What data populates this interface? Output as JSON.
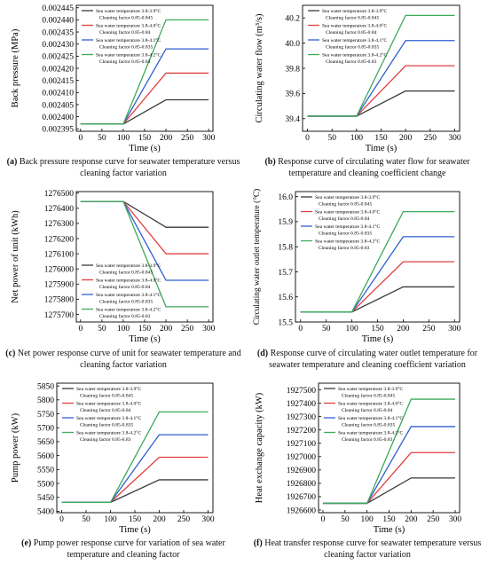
{
  "chart_data": [
    {
      "id": "a",
      "type": "line",
      "ylabel": "Back pressure (MPa)",
      "xlabel": "Time (s)",
      "xlim": [
        -10,
        310
      ],
      "ylim": [
        0.002394,
        0.002446
      ],
      "xticks": [
        0,
        50,
        100,
        150,
        200,
        250,
        300
      ],
      "yticks": [
        0.002395,
        0.0024,
        0.002405,
        0.00241,
        0.002415,
        0.00242,
        0.002425,
        0.00243,
        0.002435,
        0.00244,
        0.002445
      ],
      "yticklabels": [
        "0.002395",
        "0.002400",
        "0.002405",
        "0.002410",
        "0.002415",
        "0.002420",
        "0.002425",
        "0.002430",
        "0.002435",
        "0.002440",
        "0.002445"
      ],
      "legend_position": "top-left",
      "series": [
        {
          "name": "Sea water temperature 3.8-3.9°C",
          "sub": "Cleaning factor 0.85-0.845",
          "color": "#3a3a3a",
          "x": [
            0,
            100,
            200,
            300
          ],
          "y": [
            0.002397,
            0.002397,
            0.002407,
            0.002407
          ]
        },
        {
          "name": "Sea water temperature 3.8-4.0°C",
          "sub": "Cleaning factor 0.85-0.84",
          "color": "#e04040",
          "x": [
            0,
            100,
            200,
            300
          ],
          "y": [
            0.002397,
            0.002397,
            0.002418,
            0.002418
          ]
        },
        {
          "name": "Sea water temperature 3.8-4.1°C",
          "sub": "Cleaning factor 0.85-0.835",
          "color": "#2f5fd0",
          "x": [
            0,
            100,
            200,
            300
          ],
          "y": [
            0.002397,
            0.002397,
            0.002428,
            0.002428
          ]
        },
        {
          "name": "Sea water temperature 3.8-4.2°C",
          "sub": "Cleaning factor 0.85-0.83",
          "color": "#3caa5a",
          "x": [
            0,
            100,
            200,
            300
          ],
          "y": [
            0.002397,
            0.002397,
            0.00244,
            0.00244
          ]
        }
      ]
    },
    {
      "id": "b",
      "type": "line",
      "ylabel": "Circulating water flow (m³/s)",
      "xlabel": "Time (s)",
      "xlim": [
        -10,
        310
      ],
      "ylim": [
        39.3,
        40.3
      ],
      "xticks": [
        0,
        50,
        100,
        150,
        200,
        250,
        300
      ],
      "yticks": [
        39.4,
        39.6,
        39.8,
        40.0,
        40.2
      ],
      "yticklabels": [
        "39.4",
        "39.6",
        "39.8",
        "40.0",
        "40.2"
      ],
      "legend_position": "top-left",
      "series": [
        {
          "name": "Sea water temperature 3.8-3.9°C",
          "sub": "Cleaning factor 0.85-0.845",
          "color": "#3a3a3a",
          "x": [
            0,
            100,
            200,
            300
          ],
          "y": [
            39.42,
            39.42,
            39.62,
            39.62
          ]
        },
        {
          "name": "Sea water temperature 3.8-4.0°C",
          "sub": "Cleaning factor 0.85-0.84",
          "color": "#e04040",
          "x": [
            0,
            100,
            200,
            300
          ],
          "y": [
            39.42,
            39.42,
            39.82,
            39.82
          ]
        },
        {
          "name": "Sea water temperature 3.8-4.1°C",
          "sub": "Cleaning factor 0.85-0.835",
          "color": "#2f5fd0",
          "x": [
            0,
            100,
            200,
            300
          ],
          "y": [
            39.42,
            39.42,
            40.02,
            40.02
          ]
        },
        {
          "name": "Sea water temperature 3.8-4.2°C",
          "sub": "Cleaning factor 0.85-0.83",
          "color": "#3caa5a",
          "x": [
            0,
            100,
            200,
            300
          ],
          "y": [
            39.42,
            39.42,
            40.22,
            40.22
          ]
        }
      ]
    },
    {
      "id": "c",
      "type": "line",
      "ylabel": "Net power of unit (kWh)",
      "xlabel": "Time (s)",
      "xlim": [
        -10,
        310
      ],
      "ylim": [
        1275650,
        1276510
      ],
      "xticks": [
        0,
        50,
        100,
        150,
        200,
        250,
        300
      ],
      "yticks": [
        1275700,
        1275800,
        1275900,
        1276000,
        1276100,
        1276200,
        1276300,
        1276400,
        1276500
      ],
      "yticklabels": [
        "1275700",
        "1275800",
        "1275900",
        "1276000",
        "1276100",
        "1276200",
        "1276300",
        "1276400",
        "1276500"
      ],
      "legend_position": "bottom-left",
      "series": [
        {
          "name": "Sea water temperature 3.8-3.9°C",
          "sub": "Cleaning factor 0.85-0.845",
          "color": "#3a3a3a",
          "x": [
            0,
            100,
            200,
            300
          ],
          "y": [
            1276445,
            1276445,
            1276275,
            1276275
          ]
        },
        {
          "name": "Sea water temperature 3.8-4.0°C",
          "sub": "Cleaning factor 0.85-0.84",
          "color": "#e04040",
          "x": [
            0,
            100,
            200,
            300
          ],
          "y": [
            1276445,
            1276445,
            1276100,
            1276100
          ]
        },
        {
          "name": "Sea water temperature 3.8-4.1°C",
          "sub": "Cleaning factor 0.85-0.835",
          "color": "#2f5fd0",
          "x": [
            0,
            100,
            200,
            300
          ],
          "y": [
            1276445,
            1276445,
            1275925,
            1275925
          ]
        },
        {
          "name": "Sea water temperature 3.8-4.2°C",
          "sub": "Cleaning factor 0.85-0.83",
          "color": "#3caa5a",
          "x": [
            0,
            100,
            200,
            300
          ],
          "y": [
            1276445,
            1276445,
            1275750,
            1275750
          ]
        }
      ]
    },
    {
      "id": "d",
      "type": "line",
      "ylabel": "Circulating water outlet temperature (°C)",
      "xlabel": "Time (s)",
      "xlim": [
        -10,
        310
      ],
      "ylim": [
        15.5,
        16.02
      ],
      "xticks": [
        0,
        50,
        100,
        150,
        200,
        250,
        300
      ],
      "yticks": [
        15.5,
        15.6,
        15.7,
        15.8,
        15.9,
        16.0
      ],
      "yticklabels": [
        "15.5",
        "15.6",
        "15.7",
        "15.8",
        "15.9",
        "16.0"
      ],
      "legend_position": "top-left",
      "series": [
        {
          "name": "Sea water temperature 3.8-3.9°C",
          "sub": "Cleaning factor 0.85-0.845",
          "color": "#3a3a3a",
          "x": [
            0,
            100,
            200,
            300
          ],
          "y": [
            15.54,
            15.54,
            15.64,
            15.64
          ]
        },
        {
          "name": "Sea water temperature 3.8-4.0°C",
          "sub": "Cleaning factor 0.85-0.84",
          "color": "#e04040",
          "x": [
            0,
            100,
            200,
            300
          ],
          "y": [
            15.54,
            15.54,
            15.74,
            15.74
          ]
        },
        {
          "name": "Sea water temperature 3.8-4.1°C",
          "sub": "Cleaning factor 0.85-0.835",
          "color": "#2f5fd0",
          "x": [
            0,
            100,
            200,
            300
          ],
          "y": [
            15.54,
            15.54,
            15.84,
            15.84
          ]
        },
        {
          "name": "Sea water temperature 3.8-4.2°C",
          "sub": "Cleaning factor 0.85-0.83",
          "color": "#3caa5a",
          "x": [
            0,
            100,
            200,
            300
          ],
          "y": [
            15.54,
            15.54,
            15.94,
            15.94
          ]
        }
      ]
    },
    {
      "id": "e",
      "type": "line",
      "ylabel": "Pump power (kW)",
      "xlabel": "Time (s)",
      "xlim": [
        -10,
        310
      ],
      "ylim": [
        5395,
        5860
      ],
      "xticks": [
        0,
        50,
        100,
        150,
        200,
        250,
        300
      ],
      "yticks": [
        5400,
        5450,
        5500,
        5550,
        5600,
        5650,
        5700,
        5750,
        5800,
        5850
      ],
      "yticklabels": [
        "5400",
        "5450",
        "5500",
        "5550",
        "5600",
        "5650",
        "5700",
        "5750",
        "5800",
        "5850"
      ],
      "legend_position": "top-left",
      "series": [
        {
          "name": "Sea water temperature 3.8-3.9°C",
          "sub": "Cleaning factor 0.85-0.845",
          "color": "#3a3a3a",
          "x": [
            0,
            100,
            200,
            300
          ],
          "y": [
            5432,
            5432,
            5513,
            5513
          ]
        },
        {
          "name": "Sea water temperature 3.8-4.0°C",
          "sub": "Cleaning factor 0.85-0.84",
          "color": "#e04040",
          "x": [
            0,
            100,
            200,
            300
          ],
          "y": [
            5432,
            5432,
            5594,
            5594
          ]
        },
        {
          "name": "Sea water temperature 3.8-4.1°C",
          "sub": "Cleaning factor 0.85-0.835",
          "color": "#2f5fd0",
          "x": [
            0,
            100,
            200,
            300
          ],
          "y": [
            5432,
            5432,
            5675,
            5675
          ]
        },
        {
          "name": "Sea water temperature 3.8-4.2°C",
          "sub": "Cleaning factor 0.85-0.83",
          "color": "#3caa5a",
          "x": [
            0,
            100,
            200,
            300
          ],
          "y": [
            5432,
            5432,
            5757,
            5757
          ]
        }
      ]
    },
    {
      "id": "f",
      "type": "line",
      "ylabel": "Heat exchange capacity (kW)",
      "xlabel": "Time (s)",
      "xlim": [
        -10,
        310
      ],
      "ylim": [
        1926580,
        1927550
      ],
      "xticks": [
        0,
        50,
        100,
        150,
        200,
        250,
        300
      ],
      "yticks": [
        1926600,
        1926800,
        1927000,
        1927200,
        1927400
      ],
      "yticklabels": [
        "1926600",
        "1926800",
        "1927000",
        "1927200",
        "1927400"
      ],
      "extra_yticks": [
        1926700,
        1926900,
        1927100,
        1927300,
        1927500
      ],
      "extra_yticklabels": [
        "1926700",
        "1926900",
        "1927100",
        "1927300",
        "1927500"
      ],
      "legend_position": "top-left",
      "series": [
        {
          "name": "Sea water temperature 3.8-3.9°C",
          "sub": "Cleaning factor 0.85-0.845",
          "color": "#3a3a3a",
          "x": [
            0,
            100,
            200,
            300
          ],
          "y": [
            1926650,
            1926650,
            1926840,
            1926840
          ]
        },
        {
          "name": "Sea water temperature 3.8-4.0°C",
          "sub": "Cleaning factor 0.85-0.84",
          "color": "#e04040",
          "x": [
            0,
            100,
            200,
            300
          ],
          "y": [
            1926650,
            1926650,
            1927030,
            1927030
          ]
        },
        {
          "name": "Sea water temperature 3.8-4.1°C",
          "sub": "Cleaning factor 0.85-0.835",
          "color": "#2f5fd0",
          "x": [
            0,
            100,
            200,
            300
          ],
          "y": [
            1926650,
            1926650,
            1927225,
            1927225
          ]
        },
        {
          "name": "Sea water temperature 3.8-4.2°C",
          "sub": "Cleaning factor 0.85-0.83",
          "color": "#3caa5a",
          "x": [
            0,
            100,
            200,
            300
          ],
          "y": [
            1926650,
            1926650,
            1927430,
            1927430
          ]
        }
      ]
    }
  ],
  "captions": [
    {
      "letter": "(a)",
      "text": "Back pressure response curve for seawater temperature versus cleaning factor variation"
    },
    {
      "letter": "(b)",
      "text": "Response curve of circulating water flow for seawater temperature and cleaning coefficient change"
    },
    {
      "letter": "(c)",
      "text": "Net power response curve of unit for seawater temperature and cleaning factor variation"
    },
    {
      "letter": "(d)",
      "text": "Response curve of circulating water outlet temperature for seawater temperature and cleaning coefficient variation"
    },
    {
      "letter": "(e)",
      "text": "Pump power response curve for variation of sea water temperature and cleaning factor"
    },
    {
      "letter": "(f)",
      "text": "Heat transfer response curve for seawater temperature versus cleaning factor variation"
    }
  ]
}
